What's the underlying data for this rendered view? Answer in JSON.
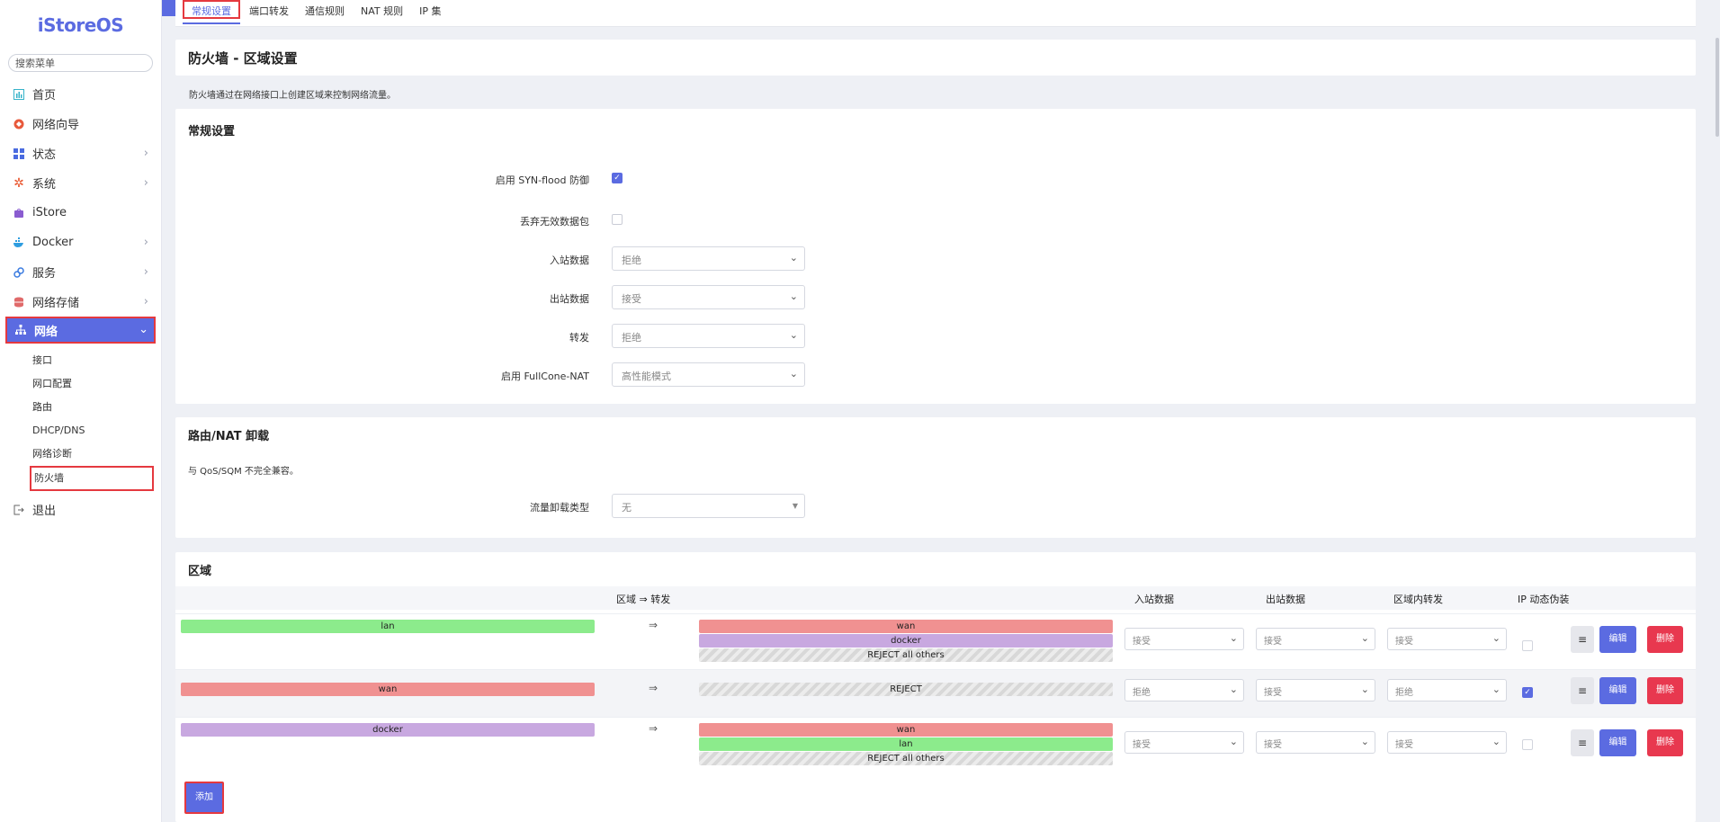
{
  "sidebar": {
    "logo": "iStoreOS",
    "search_placeholder": "搜索菜单",
    "items": [
      {
        "label": "首页",
        "icon": "dashboard-icon"
      },
      {
        "label": "网络向导",
        "icon": "wizard-icon"
      },
      {
        "label": "状态",
        "icon": "status-icon"
      },
      {
        "label": "系统",
        "icon": "gear-icon"
      },
      {
        "label": "iStore",
        "icon": "store-icon"
      },
      {
        "label": "Docker",
        "icon": "docker-icon"
      },
      {
        "label": "服务",
        "icon": "services-icon"
      },
      {
        "label": "网络存储",
        "icon": "storage-icon"
      },
      {
        "label": "网络",
        "icon": "network-icon"
      },
      {
        "label": "退出",
        "icon": "logout-icon"
      }
    ],
    "subitems": [
      "接口",
      "网口配置",
      "路由",
      "DHCP/DNS",
      "网络诊断",
      "防火墙"
    ]
  },
  "tabs": [
    "常规设置",
    "端口转发",
    "通信规则",
    "NAT 规则",
    "IP 集"
  ],
  "page": {
    "title": "防火墙 - 区域设置",
    "description": "防火墙通过在网络接口上创建区域来控制网络流量。"
  },
  "general": {
    "title": "常规设置",
    "syn_flood": {
      "label": "启用 SYN-flood 防御",
      "checked": true
    },
    "drop_invalid": {
      "label": "丢弃无效数据包",
      "checked": false
    },
    "input": {
      "label": "入站数据",
      "value": "拒绝"
    },
    "output": {
      "label": "出站数据",
      "value": "接受"
    },
    "forward": {
      "label": "转发",
      "value": "拒绝"
    },
    "fullcone": {
      "label": "启用 FullCone-NAT",
      "value": "高性能模式"
    }
  },
  "offload": {
    "title": "路由/NAT 卸载",
    "note": "与 QoS/SQM 不完全兼容。",
    "type": {
      "label": "流量卸载类型",
      "value": "无"
    }
  },
  "zones": {
    "title": "区域",
    "headers": {
      "zone_forward": "区域 ⇒ 转发",
      "input": "入站数据",
      "output": "出站数据",
      "intra": "区域内转发",
      "masq": "IP 动态伪装"
    },
    "arrow": "⇒",
    "rows": [
      {
        "name": "lan",
        "targets": [
          "wan",
          "docker",
          "REJECT all others"
        ],
        "input": "接受",
        "output": "接受",
        "intra": "接受",
        "masq": false
      },
      {
        "name": "wan",
        "targets": [
          "REJECT"
        ],
        "input": "拒绝",
        "output": "接受",
        "intra": "拒绝",
        "masq": true
      },
      {
        "name": "docker",
        "targets": [
          "wan",
          "lan",
          "REJECT all others"
        ],
        "input": "接受",
        "output": "接受",
        "intra": "接受",
        "masq": false
      }
    ],
    "sort_label": "≡",
    "edit_label": "编辑",
    "delete_label": "删除",
    "add_label": "添加"
  }
}
